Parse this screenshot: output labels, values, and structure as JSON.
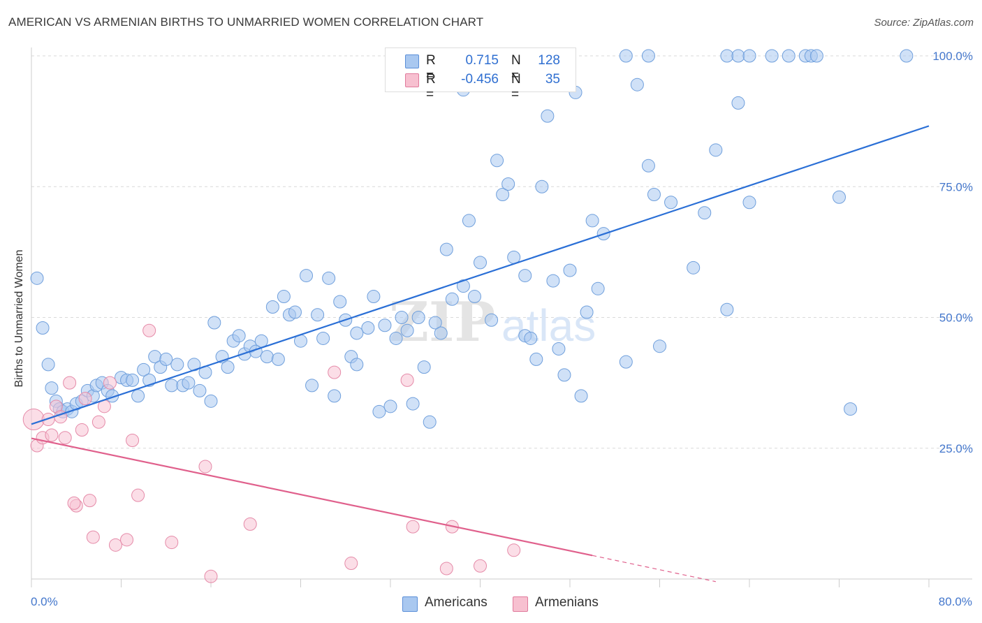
{
  "title": "AMERICAN VS ARMENIAN BIRTHS TO UNMARRIED WOMEN CORRELATION CHART",
  "source": "Source: ZipAtlas.com",
  "watermark": {
    "part1": "ZIP",
    "part2": "atlas"
  },
  "stats": {
    "r_label": "R =",
    "n_label": "N =",
    "rows": [
      {
        "r": "0.715",
        "n": "128",
        "color": "#a9c8f0",
        "border": "#5b8fd8"
      },
      {
        "r": "-0.456",
        "n": "35",
        "color": "#f7c0d0",
        "border": "#e07a9c"
      }
    ]
  },
  "legend": [
    {
      "label": "Americans",
      "color": "#a9c8f0",
      "border": "#5b8fd8"
    },
    {
      "label": "Armenians",
      "color": "#f7c0d0",
      "border": "#e07a9c"
    }
  ],
  "colors": {
    "american_fill": "#a9c8f0",
    "american_stroke": "#6f9fdc",
    "american_line": "#2a6fd6",
    "armenian_fill": "#f7c3d3",
    "armenian_stroke": "#e58aa8",
    "armenian_line": "#e0608c",
    "grid": "#d9d9d9",
    "axis_tick": "#4477cc"
  },
  "chart_data": {
    "type": "scatter",
    "title": "AMERICAN VS ARMENIAN BIRTHS TO UNMARRIED WOMEN CORRELATION CHART",
    "xlabel": "",
    "ylabel": "Births to Unmarried Women",
    "xlim": [
      0,
      80
    ],
    "ylim": [
      0,
      100
    ],
    "x_tick_labels": [
      "0.0%",
      "80.0%"
    ],
    "y_ticks": [
      25,
      50,
      75,
      100
    ],
    "y_tick_labels": [
      "25.0%",
      "50.0%",
      "75.0%",
      "100.0%"
    ],
    "grid": true,
    "legend_position": "bottom-center",
    "series": [
      {
        "name": "Americans",
        "r": 0.715,
        "n": 128,
        "trend": {
          "x": [
            0,
            80
          ],
          "y": [
            29.6,
            86.6
          ]
        },
        "points": [
          [
            0.5,
            57.5
          ],
          [
            1.0,
            48.0
          ],
          [
            1.5,
            41.0
          ],
          [
            1.8,
            36.5
          ],
          [
            2.2,
            34.0
          ],
          [
            2.5,
            32.5
          ],
          [
            2.8,
            32.0
          ],
          [
            3.2,
            32.5
          ],
          [
            3.6,
            32.0
          ],
          [
            4.0,
            33.5
          ],
          [
            4.5,
            34.0
          ],
          [
            5.0,
            36.0
          ],
          [
            5.5,
            35.0
          ],
          [
            5.8,
            37.0
          ],
          [
            6.3,
            37.5
          ],
          [
            6.8,
            36.0
          ],
          [
            7.2,
            35.0
          ],
          [
            8.0,
            38.5
          ],
          [
            8.5,
            38.0
          ],
          [
            9.0,
            38.0
          ],
          [
            9.5,
            35.0
          ],
          [
            10.0,
            40.0
          ],
          [
            10.5,
            38.0
          ],
          [
            11.0,
            42.5
          ],
          [
            11.5,
            40.5
          ],
          [
            12.0,
            42.0
          ],
          [
            12.5,
            37.0
          ],
          [
            13.0,
            41.0
          ],
          [
            13.5,
            37.0
          ],
          [
            14.0,
            37.5
          ],
          [
            14.5,
            41.0
          ],
          [
            15.0,
            36.0
          ],
          [
            15.5,
            39.5
          ],
          [
            16.0,
            34.0
          ],
          [
            16.3,
            49.0
          ],
          [
            17.0,
            42.5
          ],
          [
            17.5,
            40.5
          ],
          [
            18.0,
            45.5
          ],
          [
            18.5,
            46.5
          ],
          [
            19.0,
            43.0
          ],
          [
            19.5,
            44.5
          ],
          [
            20.0,
            43.5
          ],
          [
            20.5,
            45.5
          ],
          [
            21.0,
            42.5
          ],
          [
            21.5,
            52.0
          ],
          [
            22.0,
            42.0
          ],
          [
            22.5,
            54.0
          ],
          [
            23.0,
            50.5
          ],
          [
            23.5,
            51.0
          ],
          [
            24.0,
            45.5
          ],
          [
            24.5,
            58.0
          ],
          [
            25.0,
            37.0
          ],
          [
            25.5,
            50.5
          ],
          [
            26.0,
            46.0
          ],
          [
            26.5,
            57.5
          ],
          [
            27.0,
            35.0
          ],
          [
            27.5,
            53.0
          ],
          [
            28.0,
            49.5
          ],
          [
            28.5,
            42.5
          ],
          [
            29.0,
            41.0
          ],
          [
            30.0,
            48.0
          ],
          [
            30.5,
            54.0
          ],
          [
            31.0,
            32.0
          ],
          [
            31.5,
            48.5
          ],
          [
            32.0,
            33.0
          ],
          [
            32.5,
            46.0
          ],
          [
            33.0,
            50.0
          ],
          [
            33.5,
            47.5
          ],
          [
            34.0,
            33.5
          ],
          [
            34.5,
            50.0
          ],
          [
            35.0,
            40.5
          ],
          [
            35.5,
            30.0
          ],
          [
            36.0,
            49.0
          ],
          [
            36.5,
            47.0
          ],
          [
            37.0,
            63.0
          ],
          [
            37.5,
            53.5
          ],
          [
            38.5,
            56.0
          ],
          [
            39.0,
            68.5
          ],
          [
            39.5,
            54.0
          ],
          [
            40.0,
            60.5
          ],
          [
            41.0,
            49.5
          ],
          [
            41.5,
            80.0
          ],
          [
            42.0,
            73.5
          ],
          [
            42.5,
            75.5
          ],
          [
            43.0,
            61.5
          ],
          [
            44.0,
            46.5
          ],
          [
            44.5,
            46.0
          ],
          [
            45.0,
            42.0
          ],
          [
            45.5,
            75.0
          ],
          [
            46.0,
            88.5
          ],
          [
            46.5,
            57.0
          ],
          [
            47.0,
            44.0
          ],
          [
            47.5,
            39.0
          ],
          [
            48.0,
            59.0
          ],
          [
            48.5,
            93.0
          ],
          [
            49.0,
            35.0
          ],
          [
            49.5,
            51.0
          ],
          [
            50.0,
            68.5
          ],
          [
            50.5,
            55.5
          ],
          [
            51.0,
            66.0
          ],
          [
            53.0,
            41.5
          ],
          [
            54.0,
            94.5
          ],
          [
            55.0,
            79.0
          ],
          [
            55.5,
            73.5
          ],
          [
            56.0,
            44.5
          ],
          [
            57.0,
            72.0
          ],
          [
            59.0,
            59.5
          ],
          [
            60.0,
            70.0
          ],
          [
            61.0,
            82.0
          ],
          [
            62.0,
            51.5
          ],
          [
            63.0,
            91.0
          ],
          [
            64.0,
            72.0
          ],
          [
            66.0,
            100.0
          ],
          [
            67.5,
            100.0
          ],
          [
            69.0,
            100.0
          ],
          [
            72.0,
            73.0
          ],
          [
            73.0,
            32.5
          ],
          [
            69.5,
            100.0
          ],
          [
            70.0,
            100.0
          ],
          [
            53.0,
            100.0
          ],
          [
            55.0,
            100.0
          ],
          [
            62.0,
            100.0
          ],
          [
            63.0,
            100.0
          ],
          [
            64.0,
            100.0
          ],
          [
            78.0,
            100.0
          ],
          [
            38.5,
            93.5
          ],
          [
            44.0,
            58.0
          ],
          [
            29.0,
            47.0
          ]
        ]
      },
      {
        "name": "Armenians",
        "r": -0.456,
        "n": 35,
        "trend": {
          "x": [
            0,
            50
          ],
          "y": [
            26.9,
            4.5
          ]
        },
        "trend_extension": {
          "x": [
            50,
            61
          ],
          "y": [
            4.5,
            -0.5
          ]
        },
        "points": [
          [
            0.2,
            30.5
          ],
          [
            0.5,
            25.5
          ],
          [
            1.0,
            27.0
          ],
          [
            1.5,
            30.5
          ],
          [
            1.8,
            27.5
          ],
          [
            2.2,
            33.0
          ],
          [
            2.6,
            31.0
          ],
          [
            3.0,
            27.0
          ],
          [
            3.4,
            37.5
          ],
          [
            4.0,
            14.0
          ],
          [
            4.5,
            28.5
          ],
          [
            4.8,
            34.5
          ],
          [
            5.2,
            15.0
          ],
          [
            5.5,
            8.0
          ],
          [
            6.0,
            30.0
          ],
          [
            6.5,
            33.0
          ],
          [
            7.0,
            37.5
          ],
          [
            7.5,
            6.5
          ],
          [
            8.5,
            7.5
          ],
          [
            9.0,
            26.5
          ],
          [
            9.5,
            16.0
          ],
          [
            10.5,
            47.5
          ],
          [
            12.5,
            7.0
          ],
          [
            15.5,
            21.5
          ],
          [
            16.0,
            0.5
          ],
          [
            19.5,
            10.5
          ],
          [
            27.0,
            39.5
          ],
          [
            28.5,
            3.0
          ],
          [
            33.5,
            38.0
          ],
          [
            34.0,
            10.0
          ],
          [
            37.0,
            2.0
          ],
          [
            37.5,
            10.0
          ],
          [
            40.0,
            2.5
          ],
          [
            43.0,
            5.5
          ],
          [
            3.8,
            14.5
          ]
        ]
      }
    ]
  }
}
